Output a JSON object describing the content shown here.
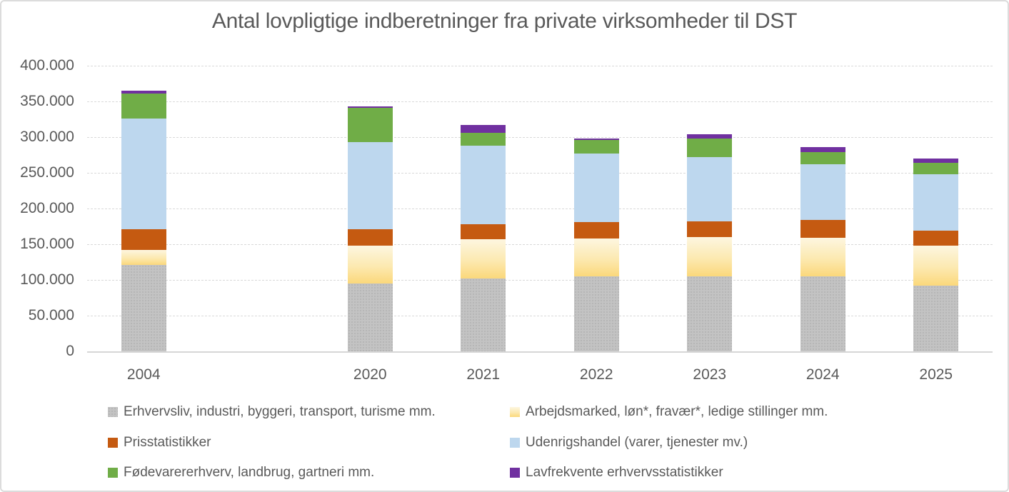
{
  "chart_data": {
    "type": "bar",
    "stacked": true,
    "title": "Antal lovpligtige indberetninger fra private virksomheder til DST",
    "categories": [
      "2004",
      "2020",
      "2021",
      "2022",
      "2023",
      "2024",
      "2025"
    ],
    "series": [
      {
        "name": "Erhvervsliv, industri, byggeri, transport, turisme mm.",
        "color": "#bfbfbf",
        "fill_style": "dotted-pattern",
        "values": [
          121000,
          95000,
          102000,
          105000,
          105000,
          105000,
          92000
        ]
      },
      {
        "name": "Arbejdsmarked, løn*, fravær*, ledige stillinger mm.",
        "color": "#fbd87b",
        "fill_style": "gradient-top-light",
        "gradient_top_color": "#fdf6e0",
        "values": [
          21000,
          53000,
          55000,
          53000,
          55000,
          54000,
          56000
        ]
      },
      {
        "name": "Prisstatistikker",
        "color": "#c55a11",
        "fill_style": "solid",
        "values": [
          29000,
          23000,
          21000,
          23000,
          22000,
          25000,
          21000
        ]
      },
      {
        "name": "Udenrigshandel (varer, tjenester mv.)",
        "color": "#bdd7ee",
        "fill_style": "solid",
        "values": [
          155000,
          122000,
          110000,
          96000,
          90000,
          78000,
          79000
        ]
      },
      {
        "name": "Fødevarererhverv, landbrug, gartneri mm.",
        "color": "#70ad47",
        "fill_style": "solid",
        "values": [
          35000,
          48000,
          18000,
          19000,
          26000,
          17000,
          16000
        ]
      },
      {
        "name": "Lavfrekvente erhvervsstatistikker",
        "color": "#7030a0",
        "fill_style": "solid",
        "values": [
          4000,
          2000,
          11000,
          2000,
          6000,
          7000,
          6000
        ]
      }
    ],
    "totals": [
      365000,
      343000,
      317000,
      298000,
      304000,
      286000,
      270000
    ],
    "xlabel": "",
    "ylabel": "",
    "ylim": [
      0,
      400000
    ],
    "y_tick_step": 50000,
    "y_tick_labels": [
      "0",
      "50.000",
      "100.000",
      "150.000",
      "200.000",
      "250.000",
      "300.000",
      "350.000",
      "400.000"
    ],
    "grid": "horizontal-dashed",
    "gridline_color": "#d9d9d9",
    "text_color": "#595959",
    "legend_position": "bottom-two-columns",
    "legend_rows": [
      [
        "Erhvervsliv, industri, byggeri, transport, turisme mm.",
        "Arbejdsmarked, løn*, fravær*, ledige stillinger mm."
      ],
      [
        "Prisstatistikker",
        "Udenrigshandel (varer, tjenester mv.)"
      ],
      [
        "Fødevarererhverv, landbrug, gartneri mm.",
        "Lavfrekvente erhvervsstatistikker"
      ]
    ],
    "x_slots": 8,
    "category_slot_index": [
      0,
      2,
      3,
      4,
      5,
      6,
      7
    ]
  }
}
